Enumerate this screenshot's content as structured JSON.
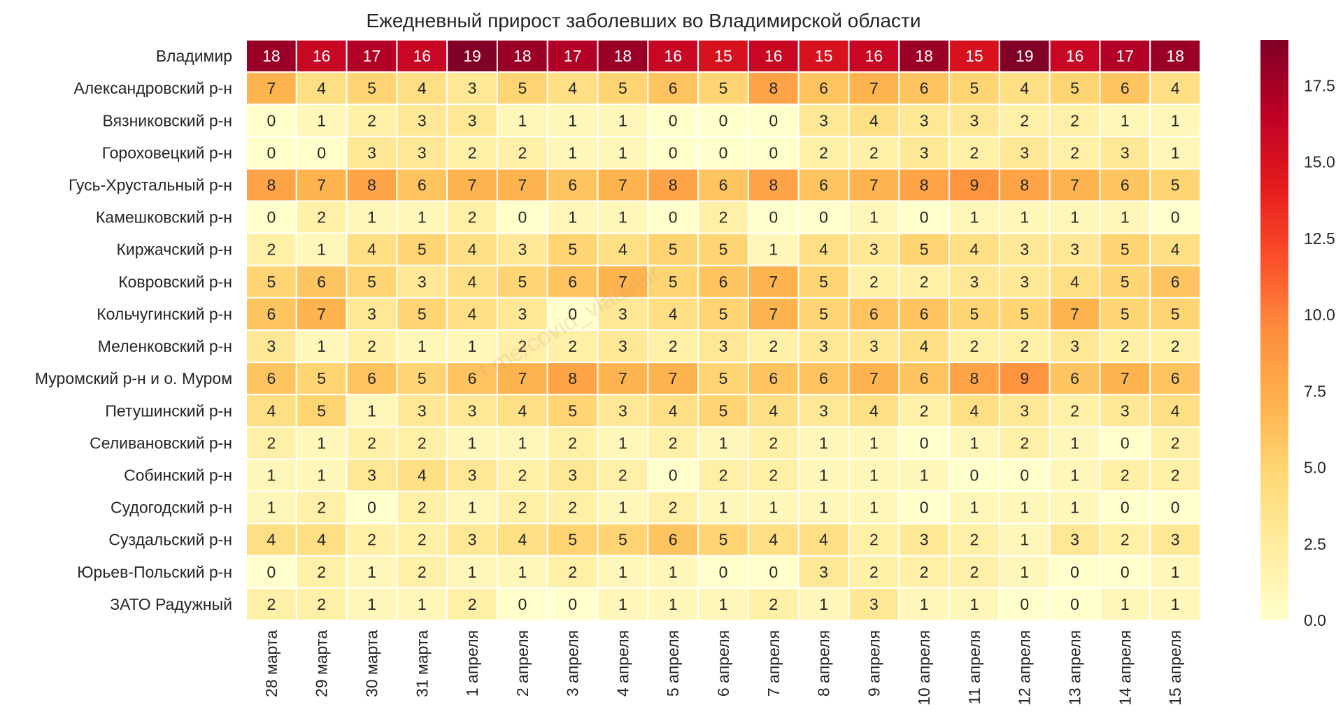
{
  "chart_data": {
    "type": "heatmap",
    "title": "Ежедневный прирост заболевших во Владимирской области",
    "watermark": "t.me/covid_vladimir",
    "x": [
      "28 марта",
      "29 марта",
      "30 марта",
      "31 марта",
      "1 апреля",
      "2 апреля",
      "3 апреля",
      "4 апреля",
      "5 апреля",
      "6 апреля",
      "7 апреля",
      "8 апреля",
      "9 апреля",
      "10 апреля",
      "11 апреля",
      "12 апреля",
      "13 апреля",
      "14 апреля",
      "15 апреля"
    ],
    "y": [
      "Владимир",
      "Александровский р-н",
      "Вязниковский р-н",
      "Гороховецкий р-н",
      "Гусь-Хрустальный р-н",
      "Камешковский р-н",
      "Киржачский р-н",
      "Ковровский р-н",
      "Кольчугинский р-н",
      "Меленковский р-н",
      "Муромский р-н и о. Муром",
      "Петушинский р-н",
      "Селивановский р-н",
      "Собинский р-н",
      "Судогодский р-н",
      "Суздальский р-н",
      "Юрьев-Польский р-н",
      "ЗАТО Радужный"
    ],
    "values": [
      [
        18,
        16,
        17,
        16,
        19,
        18,
        17,
        18,
        16,
        15,
        16,
        15,
        16,
        18,
        15,
        19,
        16,
        17,
        18
      ],
      [
        7,
        4,
        5,
        4,
        3,
        5,
        4,
        5,
        6,
        5,
        8,
        6,
        7,
        6,
        5,
        4,
        5,
        6,
        4
      ],
      [
        0,
        1,
        2,
        3,
        3,
        1,
        1,
        1,
        0,
        0,
        0,
        3,
        4,
        3,
        3,
        2,
        2,
        1,
        1
      ],
      [
        0,
        0,
        3,
        3,
        2,
        2,
        1,
        1,
        0,
        0,
        0,
        2,
        2,
        3,
        2,
        3,
        2,
        3,
        1
      ],
      [
        8,
        7,
        8,
        6,
        7,
        7,
        6,
        7,
        8,
        6,
        8,
        6,
        7,
        8,
        9,
        8,
        7,
        6,
        5
      ],
      [
        0,
        2,
        1,
        1,
        2,
        0,
        1,
        1,
        0,
        2,
        0,
        0,
        1,
        0,
        1,
        1,
        1,
        1,
        0
      ],
      [
        2,
        1,
        4,
        5,
        4,
        3,
        5,
        4,
        5,
        5,
        1,
        4,
        3,
        5,
        4,
        3,
        3,
        5,
        4
      ],
      [
        5,
        6,
        5,
        3,
        4,
        5,
        6,
        7,
        5,
        6,
        7,
        5,
        2,
        2,
        3,
        3,
        4,
        5,
        6
      ],
      [
        6,
        7,
        3,
        5,
        4,
        3,
        0,
        3,
        4,
        5,
        7,
        5,
        6,
        6,
        5,
        5,
        7,
        5,
        5
      ],
      [
        3,
        1,
        2,
        1,
        1,
        2,
        2,
        3,
        2,
        3,
        2,
        3,
        3,
        4,
        2,
        2,
        3,
        2,
        2
      ],
      [
        6,
        5,
        6,
        5,
        6,
        7,
        8,
        7,
        7,
        5,
        6,
        6,
        7,
        6,
        8,
        9,
        6,
        7,
        6
      ],
      [
        4,
        5,
        1,
        3,
        3,
        4,
        5,
        3,
        4,
        5,
        4,
        3,
        4,
        2,
        4,
        3,
        2,
        3,
        4
      ],
      [
        2,
        1,
        2,
        2,
        1,
        1,
        2,
        1,
        2,
        1,
        2,
        1,
        1,
        0,
        1,
        2,
        1,
        0,
        2
      ],
      [
        1,
        1,
        3,
        4,
        3,
        2,
        3,
        2,
        0,
        2,
        2,
        1,
        1,
        1,
        0,
        0,
        1,
        2,
        2
      ],
      [
        1,
        2,
        0,
        2,
        1,
        2,
        2,
        1,
        2,
        1,
        1,
        1,
        1,
        0,
        1,
        1,
        1,
        0,
        0
      ],
      [
        4,
        4,
        2,
        2,
        3,
        4,
        5,
        5,
        6,
        5,
        4,
        4,
        2,
        3,
        2,
        1,
        3,
        2,
        3
      ],
      [
        0,
        2,
        1,
        2,
        1,
        1,
        2,
        1,
        1,
        0,
        0,
        3,
        2,
        2,
        2,
        1,
        0,
        0,
        1
      ],
      [
        2,
        2,
        1,
        1,
        2,
        0,
        0,
        1,
        1,
        1,
        2,
        1,
        3,
        1,
        1,
        0,
        0,
        1,
        1
      ]
    ],
    "colormap": "YlOrRd",
    "vmin": 0,
    "vmax": 19,
    "colorbar_ticks": [
      "0.0",
      "2.5",
      "5.0",
      "7.5",
      "10.0",
      "12.5",
      "15.0",
      "17.5"
    ],
    "colorbar_position": "right",
    "cell_separator_color": "#ffffff"
  }
}
